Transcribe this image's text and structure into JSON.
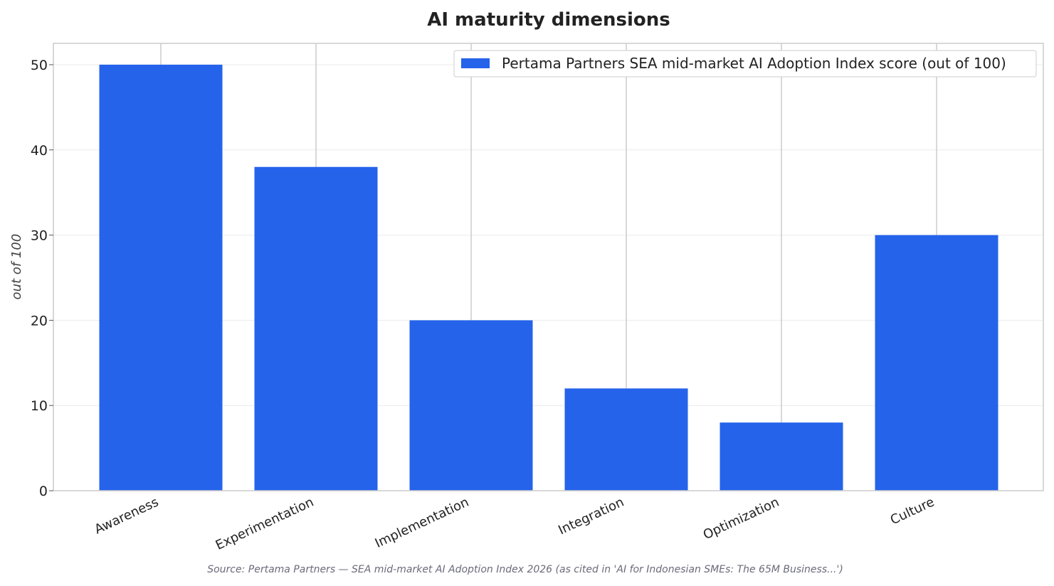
{
  "chart_data": {
    "type": "bar",
    "title": "AI maturity dimensions",
    "xlabel": "",
    "ylabel": "out of 100",
    "categories": [
      "Awareness",
      "Experimentation",
      "Implementation",
      "Integration",
      "Optimization",
      "Culture"
    ],
    "series": [
      {
        "name": "Pertama Partners SEA mid-market AI Adoption Index score (out of 100)",
        "values": [
          50,
          38,
          20,
          12,
          8,
          30
        ],
        "color": "#2563eb"
      }
    ],
    "ylim": [
      0,
      52.5
    ],
    "yticks": [
      "0",
      "10",
      "20",
      "30",
      "40",
      "50"
    ],
    "grid": true,
    "legend_position": "top-right",
    "source": "Source: Pertama Partners — SEA mid-market AI Adoption Index 2026 (as cited in 'AI for Indonesian SMEs: The 65M Business...')"
  }
}
